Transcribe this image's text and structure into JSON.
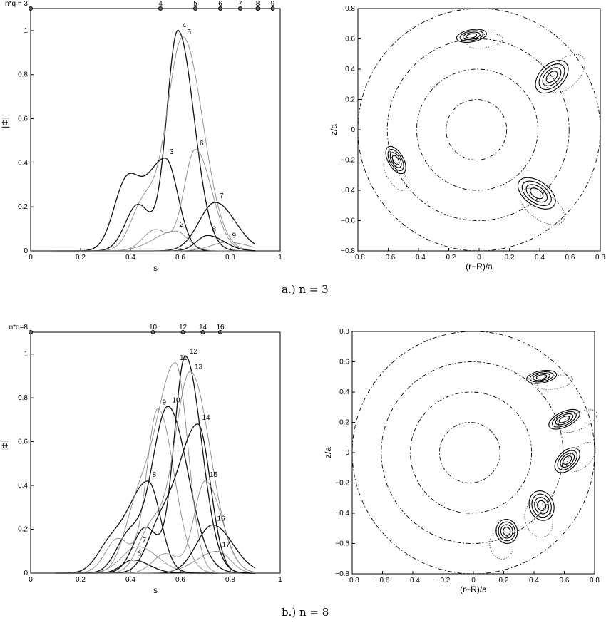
{
  "captions": {
    "a": "a.) n = 3",
    "b": "b.) n = 8"
  },
  "chart_data": [
    {
      "type": "line",
      "panel": "a-left",
      "xlabel": "s",
      "ylabel": "|Φ|",
      "xlim": [
        0,
        1
      ],
      "ylim": [
        0,
        1.1
      ],
      "xticks": [
        "0",
        "0.2",
        "0.4",
        "0.6",
        "0.8",
        "1"
      ],
      "yticks": [
        "0",
        "0.2",
        "0.4",
        "0.6",
        "0.8",
        "1"
      ],
      "top_axis_label": "n*q = 3",
      "top_axis_ticks": [
        {
          "label": "4",
          "s": 0.52
        },
        {
          "label": "5",
          "s": 0.66
        },
        {
          "label": "6",
          "s": 0.76
        },
        {
          "label": "7",
          "s": 0.84
        },
        {
          "label": "8",
          "s": 0.91
        },
        {
          "label": "9",
          "s": 0.97
        }
      ],
      "series": [
        {
          "name": "4",
          "peak_s": 0.59,
          "peak": 1.0
        },
        {
          "name": "5",
          "peak_s": 0.61,
          "peak": 0.97
        },
        {
          "name": "3",
          "peak_s": 0.54,
          "peak": 0.42
        },
        {
          "name": "6",
          "peak_s": 0.66,
          "peak": 0.46
        },
        {
          "name": "7",
          "peak_s": 0.74,
          "peak": 0.22
        },
        {
          "name": "2",
          "peak_s": 0.58,
          "peak": 0.09
        },
        {
          "name": "8",
          "peak_s": 0.71,
          "peak": 0.07
        },
        {
          "name": "9",
          "peak_s": 0.79,
          "peak": 0.04
        }
      ]
    },
    {
      "type": "contour",
      "panel": "a-right",
      "xlabel": "(r−R)/a",
      "ylabel": "z/a",
      "xlim": [
        -0.8,
        0.8
      ],
      "ylim": [
        -0.8,
        0.8
      ],
      "xticks": [
        "−0.8",
        "−0.6",
        "−0.4",
        "−0.2",
        "0",
        "0.2",
        "0.4",
        "0.6",
        "0.8"
      ],
      "yticks": [
        "−0.8",
        "−0.6",
        "−0.4",
        "−0.2",
        "0",
        "0.2",
        "0.4",
        "0.6",
        "0.8"
      ]
    },
    {
      "type": "line",
      "panel": "b-left",
      "xlabel": "s",
      "ylabel": "|Φ|",
      "xlim": [
        0,
        1
      ],
      "ylim": [
        0,
        1.1
      ],
      "xticks": [
        "0",
        "0.2",
        "0.4",
        "0.6",
        "0.8",
        "1"
      ],
      "yticks": [
        "0",
        "0.2",
        "0.4",
        "0.6",
        "0.8",
        "1"
      ],
      "top_axis_label": "n*q=8",
      "top_axis_ticks": [
        {
          "label": "10",
          "s": 0.49
        },
        {
          "label": "12",
          "s": 0.61
        },
        {
          "label": "14",
          "s": 0.69
        },
        {
          "label": "16",
          "s": 0.76
        }
      ],
      "series": [
        {
          "name": "6",
          "peak_s": 0.41,
          "peak": 0.06
        },
        {
          "name": "7",
          "peak_s": 0.43,
          "peak": 0.12
        },
        {
          "name": "8",
          "peak_s": 0.47,
          "peak": 0.42
        },
        {
          "name": "9",
          "peak_s": 0.51,
          "peak": 0.75
        },
        {
          "name": "10",
          "peak_s": 0.55,
          "peak": 0.76
        },
        {
          "name": "11",
          "peak_s": 0.58,
          "peak": 0.96
        },
        {
          "name": "12",
          "peak_s": 0.62,
          "peak": 0.99
        },
        {
          "name": "13",
          "peak_s": 0.64,
          "peak": 0.92
        },
        {
          "name": "14",
          "peak_s": 0.67,
          "peak": 0.68
        },
        {
          "name": "15",
          "peak_s": 0.7,
          "peak": 0.42
        },
        {
          "name": "16",
          "peak_s": 0.73,
          "peak": 0.22
        },
        {
          "name": "17",
          "peak_s": 0.75,
          "peak": 0.1
        }
      ]
    },
    {
      "type": "contour",
      "panel": "b-right",
      "xlabel": "(r−R)/a",
      "ylabel": "z/a",
      "xlim": [
        -0.8,
        0.8
      ],
      "ylim": [
        -0.8,
        0.8
      ],
      "xticks": [
        "−0.8",
        "−0.6",
        "−0.4",
        "−0.2",
        "0",
        "0.2",
        "0.4",
        "0.6",
        "0.8"
      ],
      "yticks": [
        "−0.8",
        "−0.6",
        "−0.4",
        "−0.2",
        "0",
        "0.2",
        "0.4",
        "0.6",
        "0.8"
      ]
    }
  ]
}
